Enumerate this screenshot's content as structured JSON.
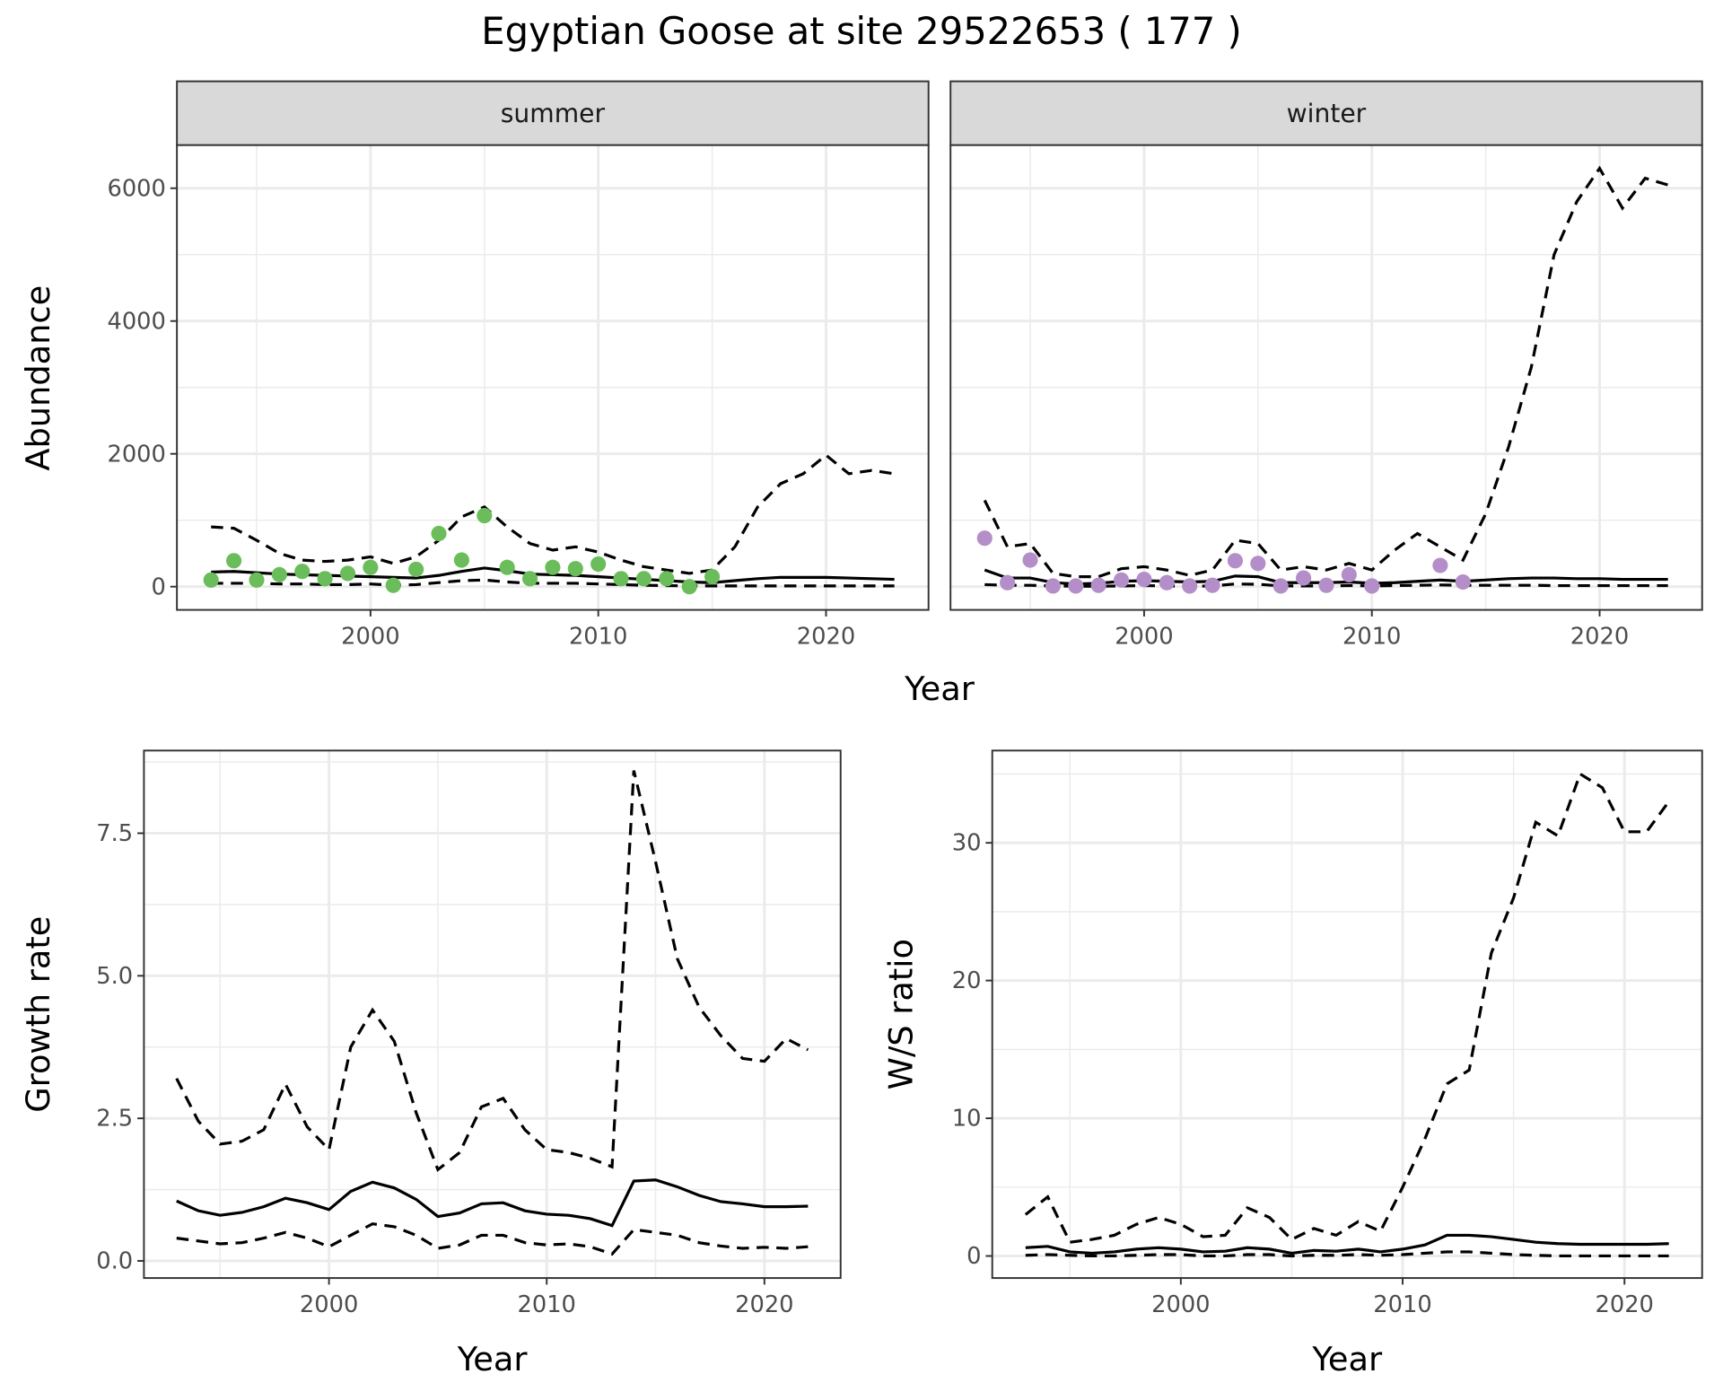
{
  "title": "Egyptian Goose at site 29522653 ( 177 )",
  "colors": {
    "summer": "#6abd5a",
    "winter": "#b48ec8",
    "line": "#000000",
    "grid": "#ebebeb",
    "strip": "#d9d9d9"
  },
  "chart_data": [
    {
      "type": "line",
      "facet": "summer",
      "xlabel": "Year",
      "ylabel": "Abundance",
      "xlim": [
        1991.5,
        2024.5
      ],
      "ylim": [
        -350,
        6650
      ],
      "xticks": [
        2000,
        2010,
        2020
      ],
      "yticks": [
        0,
        2000,
        4000,
        6000
      ],
      "x": [
        1993,
        1994,
        1995,
        1996,
        1997,
        1998,
        1999,
        2000,
        2001,
        2002,
        2003,
        2004,
        2005,
        2006,
        2007,
        2008,
        2009,
        2010,
        2011,
        2012,
        2013,
        2014,
        2015,
        2016,
        2017,
        2018,
        2019,
        2020,
        2021,
        2022,
        2023
      ],
      "series": [
        {
          "name": "estimate",
          "style": "solid",
          "values": [
            220,
            230,
            210,
            190,
            180,
            170,
            160,
            150,
            140,
            130,
            170,
            230,
            280,
            240,
            190,
            180,
            170,
            150,
            130,
            110,
            90,
            70,
            60,
            90,
            120,
            140,
            140,
            140,
            130,
            120,
            110
          ]
        },
        {
          "name": "upper",
          "style": "dashed",
          "values": [
            900,
            880,
            700,
            500,
            400,
            380,
            400,
            450,
            350,
            450,
            700,
            1050,
            1200,
            900,
            650,
            550,
            600,
            520,
            400,
            300,
            250,
            200,
            250,
            600,
            1200,
            1550,
            1700,
            1980,
            1700,
            1750,
            1700
          ]
        },
        {
          "name": "lower",
          "style": "dashed",
          "values": [
            50,
            50,
            50,
            40,
            40,
            30,
            30,
            40,
            20,
            30,
            60,
            90,
            100,
            70,
            50,
            50,
            50,
            40,
            30,
            20,
            15,
            10,
            10,
            10,
            10,
            10,
            10,
            10,
            10,
            10,
            10
          ]
        }
      ],
      "points": {
        "x": [
          1993,
          1994,
          1995,
          1996,
          1997,
          1998,
          1999,
          2000,
          2001,
          2002,
          2003,
          2004,
          2005,
          2006,
          2007,
          2008,
          2009,
          2010,
          2011,
          2012,
          2013,
          2014,
          2015
        ],
        "y": [
          100,
          390,
          100,
          180,
          230,
          120,
          200,
          290,
          20,
          260,
          800,
          400,
          1070,
          290,
          120,
          290,
          270,
          340,
          120,
          120,
          120,
          0,
          150
        ]
      }
    },
    {
      "type": "line",
      "facet": "winter",
      "xlabel": "Year",
      "ylabel": "Abundance",
      "xlim": [
        1991.5,
        2024.5
      ],
      "ylim": [
        -350,
        6650
      ],
      "xticks": [
        2000,
        2010,
        2020
      ],
      "yticks": [
        0,
        2000,
        4000,
        6000
      ],
      "x": [
        1993,
        1994,
        1995,
        1996,
        1997,
        1998,
        1999,
        2000,
        2001,
        2002,
        2003,
        2004,
        2005,
        2006,
        2007,
        2008,
        2009,
        2010,
        2011,
        2012,
        2013,
        2014,
        2015,
        2016,
        2017,
        2018,
        2019,
        2020,
        2021,
        2022,
        2023
      ],
      "series": [
        {
          "name": "estimate",
          "style": "solid",
          "values": [
            250,
            130,
            130,
            60,
            40,
            50,
            80,
            90,
            80,
            70,
            80,
            160,
            150,
            60,
            60,
            60,
            70,
            50,
            60,
            80,
            100,
            80,
            100,
            120,
            130,
            130,
            120,
            120,
            110,
            110,
            110
          ]
        },
        {
          "name": "upper",
          "style": "dashed",
          "values": [
            1300,
            600,
            650,
            200,
            150,
            150,
            270,
            300,
            250,
            170,
            250,
            700,
            650,
            250,
            300,
            250,
            350,
            250,
            550,
            800,
            600,
            400,
            1100,
            2100,
            3300,
            5000,
            5800,
            6300,
            5700,
            6150,
            6050
          ]
        },
        {
          "name": "lower",
          "style": "dashed",
          "values": [
            30,
            20,
            20,
            10,
            5,
            5,
            10,
            15,
            10,
            5,
            10,
            40,
            35,
            10,
            10,
            10,
            15,
            10,
            15,
            20,
            25,
            20,
            20,
            20,
            20,
            15,
            15,
            15,
            15,
            15,
            15
          ]
        }
      ],
      "points": {
        "x": [
          1993,
          1994,
          1995,
          1996,
          1997,
          1998,
          1999,
          2000,
          2001,
          2002,
          2003,
          2004,
          2005,
          2006,
          2007,
          2008,
          2009,
          2010,
          2013,
          2014
        ],
        "y": [
          730,
          60,
          400,
          10,
          10,
          20,
          100,
          110,
          60,
          10,
          20,
          390,
          350,
          10,
          130,
          20,
          180,
          10,
          320,
          70
        ]
      }
    },
    {
      "type": "line",
      "xlabel": "Year",
      "ylabel": "Growth rate",
      "xlim": [
        1991.5,
        2023.5
      ],
      "ylim": [
        -0.3,
        8.95
      ],
      "xticks": [
        2000,
        2010,
        2020
      ],
      "yticks": [
        0.0,
        2.5,
        5.0,
        7.5
      ],
      "ytick_labels": [
        "0.0",
        "2.5",
        "5.0",
        "7.5"
      ],
      "x": [
        1993,
        1994,
        1995,
        1996,
        1997,
        1998,
        1999,
        2000,
        2001,
        2002,
        2003,
        2004,
        2005,
        2006,
        2007,
        2008,
        2009,
        2010,
        2011,
        2012,
        2013,
        2014,
        2015,
        2016,
        2017,
        2018,
        2019,
        2020,
        2021,
        2022
      ],
      "series": [
        {
          "name": "estimate",
          "style": "solid",
          "values": [
            1.05,
            0.88,
            0.8,
            0.85,
            0.95,
            1.1,
            1.02,
            0.9,
            1.22,
            1.38,
            1.28,
            1.08,
            0.78,
            0.84,
            1.0,
            1.02,
            0.88,
            0.82,
            0.8,
            0.74,
            0.62,
            1.4,
            1.42,
            1.3,
            1.15,
            1.04,
            1.0,
            0.95,
            0.95,
            0.96
          ]
        },
        {
          "name": "upper",
          "style": "dashed",
          "values": [
            3.2,
            2.45,
            2.05,
            2.1,
            2.3,
            3.1,
            2.35,
            1.95,
            3.75,
            4.4,
            3.85,
            2.6,
            1.6,
            1.9,
            2.7,
            2.85,
            2.3,
            1.95,
            1.9,
            1.8,
            1.65,
            8.6,
            7.0,
            5.3,
            4.45,
            3.95,
            3.55,
            3.5,
            3.9,
            3.7
          ]
        },
        {
          "name": "lower",
          "style": "dashed",
          "values": [
            0.4,
            0.35,
            0.3,
            0.32,
            0.4,
            0.5,
            0.4,
            0.25,
            0.45,
            0.65,
            0.6,
            0.45,
            0.22,
            0.28,
            0.45,
            0.45,
            0.32,
            0.28,
            0.3,
            0.25,
            0.12,
            0.55,
            0.5,
            0.45,
            0.32,
            0.26,
            0.22,
            0.24,
            0.22,
            0.25
          ]
        }
      ]
    },
    {
      "type": "line",
      "xlabel": "Year",
      "ylabel": "W/S ratio",
      "xlim": [
        1991.5,
        2023.5
      ],
      "ylim": [
        -1.6,
        36.7
      ],
      "xticks": [
        2000,
        2010,
        2020
      ],
      "yticks": [
        0,
        10,
        20,
        30
      ],
      "x": [
        1993,
        1994,
        1995,
        1996,
        1997,
        1998,
        1999,
        2000,
        2001,
        2002,
        2003,
        2004,
        2005,
        2006,
        2007,
        2008,
        2009,
        2010,
        2011,
        2012,
        2013,
        2014,
        2015,
        2016,
        2017,
        2018,
        2019,
        2020,
        2021,
        2022
      ],
      "series": [
        {
          "name": "estimate",
          "style": "solid",
          "values": [
            0.6,
            0.7,
            0.3,
            0.2,
            0.3,
            0.5,
            0.6,
            0.5,
            0.3,
            0.35,
            0.6,
            0.5,
            0.2,
            0.4,
            0.35,
            0.5,
            0.3,
            0.5,
            0.8,
            1.5,
            1.5,
            1.4,
            1.2,
            1.0,
            0.9,
            0.85,
            0.85,
            0.85,
            0.85,
            0.9
          ]
        },
        {
          "name": "upper",
          "style": "dashed",
          "values": [
            3.0,
            4.3,
            1.0,
            1.2,
            1.5,
            2.3,
            2.8,
            2.3,
            1.4,
            1.5,
            3.5,
            2.8,
            1.2,
            2.0,
            1.5,
            2.5,
            1.8,
            5.0,
            8.5,
            12.5,
            13.5,
            22,
            26,
            31.5,
            30.5,
            35,
            34,
            30.8,
            30.8,
            33
          ]
        },
        {
          "name": "lower",
          "style": "dashed",
          "values": [
            0.05,
            0.1,
            0.05,
            0,
            0,
            0.05,
            0.1,
            0.1,
            0,
            0,
            0.1,
            0.1,
            0,
            0.05,
            0.05,
            0.1,
            0.05,
            0.1,
            0.2,
            0.3,
            0.3,
            0.2,
            0.1,
            0.05,
            0,
            0,
            0,
            0,
            0,
            0
          ]
        }
      ]
    }
  ]
}
